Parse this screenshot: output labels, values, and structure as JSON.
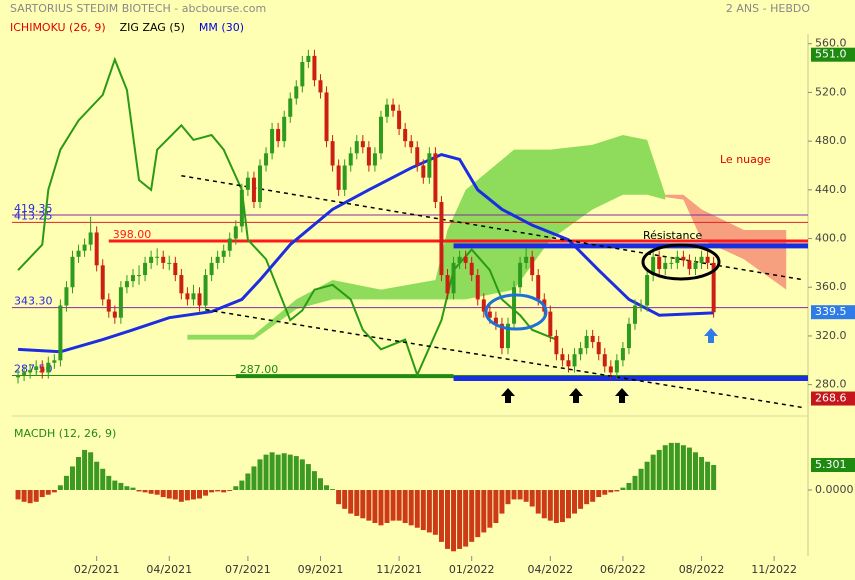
{
  "header": {
    "title": "SARTORIUS STEDIM BIOTECH - abcbourse.com",
    "period": "2 ANS - HEBDO"
  },
  "chart_data": [
    {
      "type": "candlestick",
      "indicators": [
        {
          "name": "ICHIMOKU (26, 9)",
          "color": "#e00000"
        },
        {
          "name": "ZIG ZAG (5)",
          "color": "#000000"
        },
        {
          "name": "MM (30)",
          "color": "#0000e0"
        }
      ],
      "xlim": [
        -1,
        130.6
      ],
      "xticks": [
        {
          "value": 13,
          "label": "02/2021"
        },
        {
          "value": 25,
          "label": "04/2021"
        },
        {
          "value": 38,
          "label": "07/2021"
        },
        {
          "value": 50,
          "label": "09/2021"
        },
        {
          "value": 63,
          "label": "11/2021"
        },
        {
          "value": 75,
          "label": "01/2022"
        },
        {
          "value": 88,
          "label": "04/2022"
        },
        {
          "value": 100,
          "label": "06/2022"
        },
        {
          "value": 113,
          "label": "08/2022"
        },
        {
          "value": 125,
          "label": "11/2022"
        }
      ],
      "ylim": [
        260,
        568
      ],
      "yticks": [
        {
          "value": 280,
          "label": "280.0"
        },
        {
          "value": 320,
          "label": "320.0"
        },
        {
          "value": 360,
          "label": "360.0"
        },
        {
          "value": 400,
          "label": "400.0"
        },
        {
          "value": 440,
          "label": "440.0"
        },
        {
          "value": 480,
          "label": "480.0"
        },
        {
          "value": 520,
          "label": "520.0"
        },
        {
          "value": 560,
          "label": "560.0"
        }
      ],
      "up_color": "#2e9a1e",
      "down_color": "#cc1f14",
      "candles": [
        [
          286,
          293,
          281,
          288
        ],
        [
          288,
          295,
          283,
          290
        ],
        [
          290,
          297,
          285,
          292
        ],
        [
          292,
          300,
          287,
          295
        ],
        [
          295,
          300,
          285,
          290
        ],
        [
          290,
          303,
          285,
          298
        ],
        [
          298,
          305,
          293,
          300
        ],
        [
          300,
          350,
          295,
          345
        ],
        [
          345,
          365,
          340,
          360
        ],
        [
          360,
          390,
          355,
          385
        ],
        [
          385,
          395,
          380,
          390
        ],
        [
          390,
          400,
          385,
          395
        ],
        [
          395,
          418,
          390,
          405
        ],
        [
          405,
          410,
          373,
          378
        ],
        [
          378,
          383,
          345,
          350
        ],
        [
          350,
          355,
          335,
          340
        ],
        [
          340,
          345,
          330,
          335
        ],
        [
          335,
          365,
          330,
          360
        ],
        [
          360,
          370,
          355,
          365
        ],
        [
          365,
          375,
          360,
          370
        ],
        [
          370,
          378,
          362,
          370
        ],
        [
          370,
          385,
          365,
          380
        ],
        [
          380,
          390,
          375,
          385
        ],
        [
          385,
          392,
          378,
          385
        ],
        [
          385,
          390,
          375,
          380
        ],
        [
          380,
          386,
          374,
          380
        ],
        [
          380,
          385,
          365,
          370
        ],
        [
          370,
          375,
          350,
          355
        ],
        [
          355,
          360,
          345,
          350
        ],
        [
          350,
          362,
          345,
          355
        ],
        [
          355,
          360,
          340,
          345
        ],
        [
          345,
          375,
          340,
          370
        ],
        [
          370,
          385,
          365,
          380
        ],
        [
          380,
          390,
          375,
          385
        ],
        [
          385,
          395,
          380,
          390
        ],
        [
          390,
          405,
          385,
          400
        ],
        [
          400,
          415,
          395,
          410
        ],
        [
          410,
          445,
          405,
          440
        ],
        [
          440,
          455,
          435,
          450
        ],
        [
          450,
          455,
          425,
          430
        ],
        [
          430,
          465,
          425,
          460
        ],
        [
          460,
          475,
          455,
          470
        ],
        [
          470,
          495,
          465,
          490
        ],
        [
          490,
          495,
          475,
          480
        ],
        [
          480,
          505,
          475,
          500
        ],
        [
          500,
          520,
          495,
          515
        ],
        [
          515,
          530,
          510,
          525
        ],
        [
          525,
          550,
          520,
          545
        ],
        [
          545,
          555,
          540,
          550
        ],
        [
          550,
          555,
          525,
          530
        ],
        [
          530,
          535,
          515,
          520
        ],
        [
          520,
          525,
          475,
          480
        ],
        [
          480,
          485,
          455,
          460
        ],
        [
          460,
          465,
          435,
          440
        ],
        [
          440,
          465,
          435,
          460
        ],
        [
          460,
          475,
          455,
          470
        ],
        [
          470,
          485,
          465,
          480
        ],
        [
          480,
          485,
          470,
          475
        ],
        [
          475,
          480,
          455,
          460
        ],
        [
          460,
          475,
          455,
          470
        ],
        [
          470,
          505,
          465,
          500
        ],
        [
          500,
          515,
          495,
          510
        ],
        [
          510,
          515,
          500,
          505
        ],
        [
          505,
          510,
          485,
          490
        ],
        [
          490,
          495,
          475,
          480
        ],
        [
          480,
          485,
          470,
          475
        ],
        [
          475,
          480,
          455,
          460
        ],
        [
          460,
          465,
          445,
          450
        ],
        [
          450,
          475,
          445,
          470
        ],
        [
          470,
          475,
          425,
          430
        ],
        [
          430,
          435,
          365,
          370
        ],
        [
          370,
          375,
          350,
          355
        ],
        [
          355,
          385,
          350,
          380
        ],
        [
          380,
          390,
          375,
          385
        ],
        [
          385,
          390,
          375,
          380
        ],
        [
          380,
          385,
          365,
          370
        ],
        [
          370,
          375,
          345,
          350
        ],
        [
          350,
          355,
          335,
          340
        ],
        [
          340,
          345,
          330,
          335
        ],
        [
          335,
          340,
          325,
          330
        ],
        [
          330,
          335,
          305,
          310
        ],
        [
          310,
          335,
          305,
          330
        ],
        [
          330,
          365,
          325,
          360
        ],
        [
          360,
          385,
          355,
          380
        ],
        [
          380,
          392,
          375,
          385
        ],
        [
          385,
          390,
          365,
          370
        ],
        [
          370,
          375,
          345,
          350
        ],
        [
          350,
          355,
          335,
          340
        ],
        [
          340,
          345,
          315,
          320
        ],
        [
          320,
          325,
          300,
          305
        ],
        [
          305,
          310,
          295,
          300
        ],
        [
          300,
          305,
          290,
          295
        ],
        [
          295,
          310,
          290,
          305
        ],
        [
          305,
          315,
          300,
          310
        ],
        [
          310,
          325,
          305,
          320
        ],
        [
          320,
          325,
          310,
          315
        ],
        [
          315,
          320,
          300,
          305
        ],
        [
          305,
          310,
          290,
          295
        ],
        [
          295,
          300,
          285,
          290
        ],
        [
          290,
          305,
          285,
          300
        ],
        [
          300,
          315,
          295,
          310
        ],
        [
          310,
          335,
          305,
          330
        ],
        [
          330,
          350,
          325,
          345
        ],
        [
          345,
          350,
          340,
          345
        ],
        [
          345,
          375,
          340,
          370
        ],
        [
          370,
          390,
          365,
          385
        ],
        [
          385,
          390,
          370,
          375
        ],
        [
          375,
          385,
          370,
          380
        ],
        [
          380,
          385,
          375,
          380
        ],
        [
          380,
          390,
          375,
          385
        ],
        [
          385,
          390,
          377,
          382
        ],
        [
          382,
          387,
          370,
          375
        ],
        [
          375,
          385,
          370,
          380
        ],
        [
          380,
          390,
          375,
          385
        ],
        [
          385,
          390,
          375,
          380
        ],
        [
          380,
          385,
          335,
          339.5
        ]
      ],
      "clouds": [
        {
          "color": "#8fdc5c",
          "x": [
            28,
            37,
            39,
            46,
            52,
            60,
            69,
            71,
            74,
            82,
            88,
            95,
            100,
            104,
            107
          ],
          "upper": [
            321,
            321,
            321,
            350,
            366,
            358,
            366,
            407,
            440,
            473,
            473,
            477,
            485,
            481,
            436
          ],
          "lower": [
            317,
            317,
            317,
            342,
            350,
            350,
            350,
            350,
            350,
            358,
            399,
            424,
            436,
            436,
            432
          ]
        },
        {
          "color": "#f7a080",
          "x": [
            107,
            110,
            113,
            120,
            127
          ],
          "upper": [
            436,
            436,
            424,
            407,
            407
          ],
          "lower": [
            434,
            432,
            399,
            383,
            358
          ]
        }
      ],
      "lines": [
        {
          "color": "#2a9a16",
          "width": 2,
          "x": [
            0,
            4,
            5,
            7,
            10,
            14,
            16,
            18,
            20,
            22,
            23,
            27,
            29,
            32,
            34,
            37,
            38,
            41,
            43,
            45,
            47,
            49,
            52,
            55,
            57,
            60,
            62,
            64,
            66,
            70,
            72,
            75,
            78,
            80,
            83,
            85,
            89
          ],
          "values": [
            374,
            395,
            440,
            473,
            497,
            518,
            547,
            522,
            448,
            440,
            473,
            493,
            481,
            485,
            473,
            440,
            399,
            383,
            358,
            333,
            341,
            358,
            362,
            350,
            325,
            309,
            313,
            317,
            288,
            333,
            374,
            391,
            374,
            350,
            337,
            325,
            317
          ]
        },
        {
          "color": "#1c2ee0",
          "width": 3,
          "x": [
            0,
            7,
            14,
            19,
            25,
            32,
            37,
            40,
            45,
            52,
            58,
            65,
            70,
            73,
            76,
            80,
            85,
            91,
            96,
            101,
            106,
            115
          ],
          "values": [
            309,
            307,
            317,
            325,
            335,
            340,
            350,
            366,
            395,
            424,
            440,
            458,
            469,
            465,
            440,
            424,
            411,
            399,
            374,
            350,
            337,
            339
          ]
        },
        {
          "color": "#000000",
          "width": 1.5,
          "dash": "4,4",
          "x": [
            27,
            130
          ],
          "values": [
            451.6,
            366
          ]
        },
        {
          "color": "#000000",
          "width": 1.5,
          "dash": "4,4",
          "x": [
            31,
            130
          ],
          "values": [
            341.6,
            261
          ]
        }
      ],
      "levels": [
        {
          "value": 419.35,
          "label": "419.35",
          "color": "#8a2aa0",
          "width": 1
        },
        {
          "value": 413.25,
          "label": "413.25",
          "color": "#e02020",
          "width": 1
        },
        {
          "value": 398,
          "label": "398.00",
          "color": "#ff1a1a",
          "width": 3,
          "x": [
            15,
            130.6
          ]
        },
        {
          "value": 343.3,
          "label": "343.30",
          "color": "#8a2aa0",
          "width": 1
        },
        {
          "value": 287.5,
          "label": "287.50",
          "color": "#2a8a10",
          "width": 1
        },
        {
          "value": 287,
          "label": "287.00",
          "color": "#1f8a10",
          "width": 4,
          "x": [
            36,
            72
          ]
        },
        {
          "value": 394,
          "color": "#1a2ee0",
          "width": 5,
          "x": [
            72,
            130.6
          ]
        },
        {
          "value": 285,
          "color": "#1a2ee0",
          "width": 5,
          "x": [
            72,
            130.6
          ]
        }
      ],
      "last_values": [
        {
          "value": 551,
          "label": "551.0",
          "color": "#1f8a10"
        },
        {
          "value": 339.5,
          "label": "339.5",
          "color": "#2f7be8"
        },
        {
          "value": 268.6,
          "label": "268.6",
          "color": "#c4161c"
        }
      ],
      "annotations": [
        {
          "text": "Le nuage",
          "color": "#e00000"
        },
        {
          "text": "Résistance",
          "color": "#000000"
        }
      ]
    },
    {
      "type": "bar",
      "title": "MACDH (12, 26, 9)",
      "title_color": "#1f8a10",
      "up_color": "#3c9a22",
      "down_color": "#cc3a18",
      "ylim": [
        -14,
        14
      ],
      "yticks": [
        {
          "value": 0,
          "label": "0.0000"
        }
      ],
      "values": [
        -2,
        -2.5,
        -2.8,
        -2.5,
        -1.5,
        -1,
        -0.5,
        1,
        3,
        5,
        7,
        8.5,
        8,
        6,
        4.5,
        3,
        2,
        1.5,
        0.8,
        0.5,
        -0.3,
        -0.5,
        -0.8,
        -1,
        -1.5,
        -1.8,
        -2,
        -2.5,
        -2.2,
        -2,
        -1.8,
        -1.2,
        -0.5,
        -0.3,
        -0.5,
        -0.2,
        0.8,
        2,
        3.5,
        5,
        6.5,
        7.5,
        8,
        7.5,
        7.8,
        7.5,
        7.2,
        6.5,
        5.5,
        4,
        2.5,
        1,
        0.2,
        -3,
        -4,
        -5,
        -5.5,
        -6,
        -6.5,
        -7,
        -7.5,
        -7,
        -6.5,
        -6.5,
        -7,
        -7.5,
        -8,
        -8.5,
        -9,
        -9.5,
        -11,
        -12.5,
        -13,
        -12.5,
        -12,
        -11,
        -10,
        -9,
        -8,
        -7,
        -5,
        -3,
        -2,
        -2,
        -2.5,
        -3.5,
        -5,
        -6,
        -6.5,
        -7,
        -6.8,
        -6,
        -5,
        -4,
        -3,
        -2.5,
        -1.5,
        -1,
        -0.5,
        -0.3,
        0.5,
        1.5,
        3,
        4.5,
        6,
        7.5,
        8.5,
        9.5,
        10,
        10,
        9.5,
        9,
        8,
        7,
        6,
        5.301
      ],
      "last_values": [
        {
          "value": 5.301,
          "label": "5.301",
          "color": "#1f8a10"
        }
      ]
    }
  ]
}
